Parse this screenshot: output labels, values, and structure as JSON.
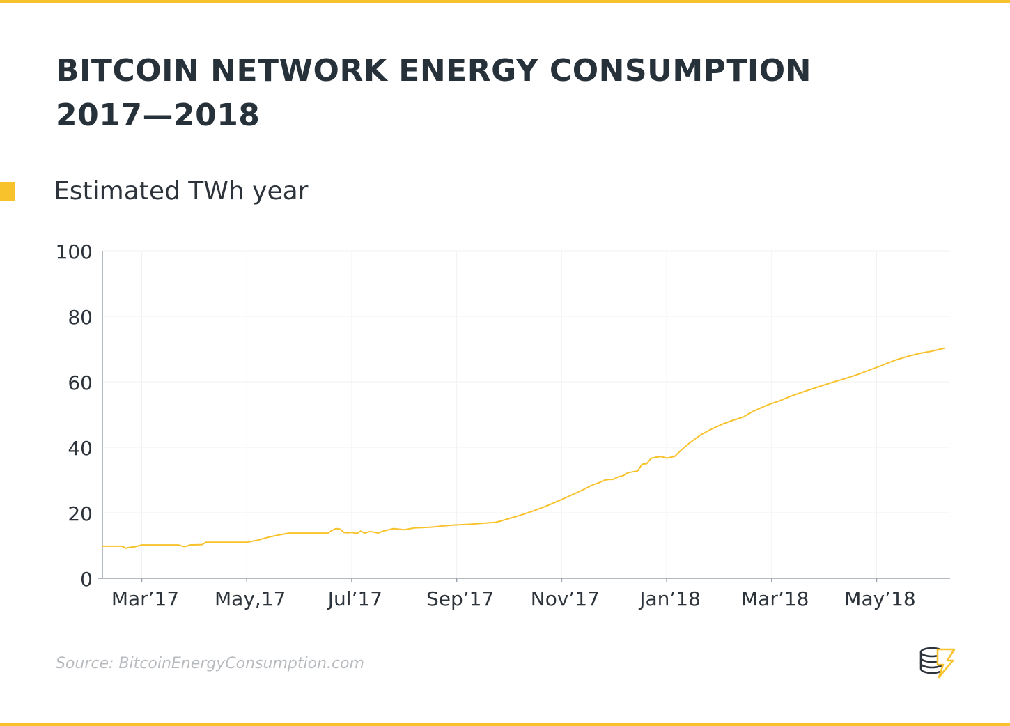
{
  "title": {
    "line1": "BITCOIN NETWORK ENERGY CONSUMPTION",
    "line2": "2017—2018"
  },
  "colors": {
    "accent": "#f7c22c",
    "text": "#2c333a",
    "axis": "#9aa3ad",
    "grid": "#f2f2f2",
    "source": "#b7bbbf"
  },
  "source": "Source: BitcoinEnergyConsumption.com",
  "logo": {
    "icon": "coin-stack-lightning-icon"
  },
  "chart_data": {
    "type": "line",
    "title": "BITCOIN NETWORK ENERGY CONSUMPTION 2017—2018",
    "xlabel": "",
    "ylabel": "",
    "series_name": "Estimated TWh year",
    "grid": true,
    "legend": "top-left",
    "ylim": [
      0,
      100
    ],
    "yticks": [
      0,
      20,
      40,
      60,
      80,
      100
    ],
    "ytick_labels": [
      "0",
      "20",
      "40",
      "60",
      "80",
      "100"
    ],
    "xlim": [
      1.05,
      17.2
    ],
    "xticks": [
      {
        "pos": 1.8,
        "label": "Mar’17"
      },
      {
        "pos": 3.8,
        "label": "May,17"
      },
      {
        "pos": 5.8,
        "label": "Jul’17"
      },
      {
        "pos": 7.8,
        "label": "Sep’17"
      },
      {
        "pos": 9.8,
        "label": "Nov’17"
      },
      {
        "pos": 11.8,
        "label": "Jan’18"
      },
      {
        "pos": 13.8,
        "label": "Mar’18"
      },
      {
        "pos": 15.8,
        "label": "May’18"
      }
    ],
    "series": [
      {
        "name": "Estimated TWh year",
        "x": [
          1.05,
          1.42,
          1.5,
          1.58,
          1.66,
          1.8,
          2.5,
          2.6,
          2.66,
          2.72,
          2.95,
          3.02,
          3.1,
          3.8,
          4.0,
          4.2,
          4.4,
          4.6,
          5.0,
          5.35,
          5.42,
          5.5,
          5.58,
          5.65,
          5.72,
          5.8,
          5.9,
          5.97,
          6.05,
          6.15,
          6.25,
          6.3,
          6.4,
          6.6,
          6.8,
          7.0,
          7.3,
          7.55,
          7.8,
          8.05,
          8.3,
          8.55,
          8.75,
          9.0,
          9.25,
          9.5,
          9.75,
          10.0,
          10.2,
          10.4,
          10.5,
          10.62,
          10.7,
          10.78,
          10.88,
          10.97,
          11.05,
          11.15,
          11.25,
          11.33,
          11.42,
          11.5,
          11.6,
          11.7,
          11.8,
          11.95,
          12.1,
          12.25,
          12.45,
          12.65,
          12.85,
          13.05,
          13.25,
          13.45,
          13.7,
          13.95,
          14.2,
          14.45,
          14.7,
          14.95,
          15.2,
          15.45,
          15.65,
          15.9,
          16.15,
          16.4,
          16.65,
          16.8,
          16.92,
          17.02,
          17.1
        ],
        "y": [
          9.8,
          9.8,
          9.2,
          9.5,
          9.6,
          10.2,
          10.2,
          9.7,
          9.8,
          10.2,
          10.3,
          11.0,
          11.0,
          11.0,
          11.6,
          12.5,
          13.2,
          13.8,
          13.8,
          13.8,
          14.6,
          15.2,
          15.0,
          14.0,
          13.9,
          14.0,
          13.7,
          14.4,
          13.8,
          14.3,
          14.0,
          13.8,
          14.4,
          15.2,
          14.8,
          15.4,
          15.6,
          16.0,
          16.3,
          16.5,
          16.8,
          17.1,
          18.0,
          19.2,
          20.5,
          22.0,
          23.7,
          25.5,
          27.0,
          28.6,
          29.1,
          30.0,
          30.2,
          30.2,
          31.0,
          31.3,
          32.2,
          32.5,
          32.8,
          34.8,
          35.0,
          36.6,
          37.0,
          37.2,
          36.7,
          37.2,
          39.5,
          41.5,
          43.8,
          45.5,
          47.0,
          48.2,
          49.2,
          51.0,
          52.8,
          54.2,
          55.8,
          57.2,
          58.5,
          59.8,
          61.0,
          62.3,
          63.5,
          65.0,
          66.6,
          67.8,
          68.8,
          69.2,
          69.6,
          70.0,
          70.3
        ]
      }
    ]
  }
}
